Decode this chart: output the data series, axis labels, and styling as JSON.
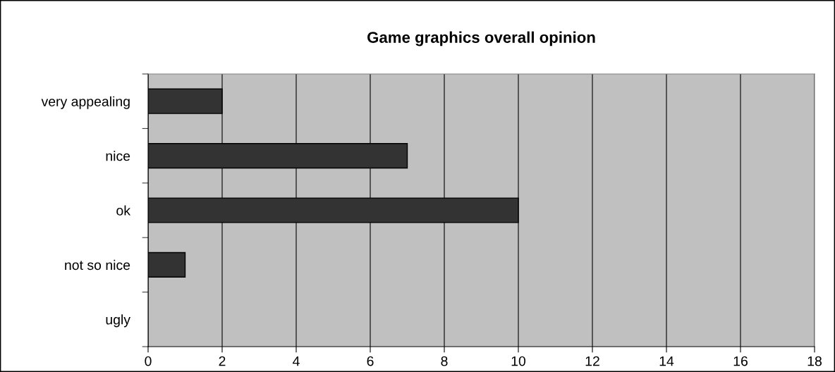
{
  "chart_data": {
    "type": "bar",
    "orientation": "horizontal",
    "title": "Game graphics overall opinion",
    "categories": [
      "very appealing",
      "nice",
      "ok",
      "not so nice",
      "ugly"
    ],
    "values": [
      2,
      7,
      10,
      1,
      0
    ],
    "color": "#333333",
    "xlim": [
      0,
      18
    ],
    "xticks": [
      0,
      2,
      4,
      6,
      8,
      10,
      12,
      14,
      16,
      18
    ],
    "grid": "x"
  }
}
